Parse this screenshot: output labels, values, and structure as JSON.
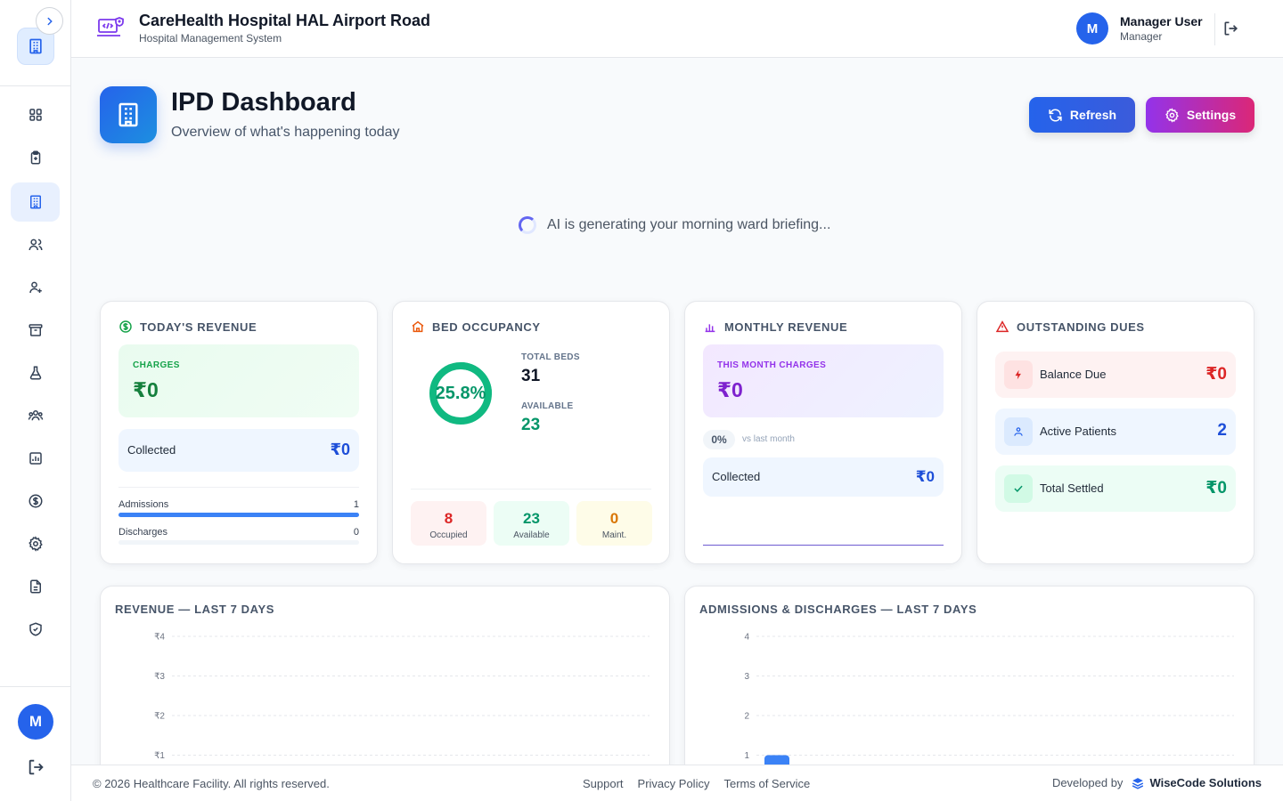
{
  "header": {
    "title": "CareHealth Hospital HAL Airport Road",
    "subtitle": "Hospital Management System",
    "user_initial": "M",
    "user_name": "Manager User",
    "user_role": "Manager"
  },
  "sidebar": {
    "avatar_initial": "M",
    "items": [
      {
        "icon": "grid-icon"
      },
      {
        "icon": "clipboard-icon"
      },
      {
        "icon": "building-icon",
        "active": true
      },
      {
        "icon": "users-icon"
      },
      {
        "icon": "user-plus-icon"
      },
      {
        "icon": "archive-icon"
      },
      {
        "icon": "flask-icon"
      },
      {
        "icon": "group-icon"
      },
      {
        "icon": "bar-chart-icon"
      },
      {
        "icon": "dollar-icon"
      },
      {
        "icon": "gear-icon"
      },
      {
        "icon": "document-icon"
      },
      {
        "icon": "shield-check-icon"
      }
    ]
  },
  "page": {
    "title": "IPD Dashboard",
    "subtitle": "Overview of what's happening today",
    "refresh_label": "Refresh",
    "settings_label": "Settings",
    "briefing": "AI is generating your morning ward briefing..."
  },
  "today_revenue": {
    "title": "TODAY'S REVENUE",
    "charges_label": "CHARGES",
    "charges_value": "₹0",
    "collected_label": "Collected",
    "collected_value": "₹0",
    "admissions_label": "Admissions",
    "admissions_value": "1",
    "admissions_fill": 1.0,
    "discharges_label": "Discharges",
    "discharges_value": "0",
    "discharges_fill": 0
  },
  "bed_occupancy": {
    "title": "BED OCCUPANCY",
    "occupancy_pct": "25.8%",
    "occupancy_fraction": 0.258,
    "total_label": "TOTAL BEDS",
    "total_value": "31",
    "available_label": "AVAILABLE",
    "available_value": "23",
    "occupied_count": "8",
    "occupied_label": "Occupied",
    "available_count": "23",
    "available_small_label": "Available",
    "maint_count": "0",
    "maint_label": "Maint."
  },
  "monthly_revenue": {
    "title": "MONTHLY REVENUE",
    "charges_label": "THIS MONTH CHARGES",
    "charges_value": "₹0",
    "change_pct": "0%",
    "change_note": "vs last month",
    "collected_label": "Collected",
    "collected_value": "₹0"
  },
  "outstanding_dues": {
    "title": "OUTSTANDING DUES",
    "balance_label": "Balance Due",
    "balance_value": "₹0",
    "active_label": "Active Patients",
    "active_value": "2",
    "settled_label": "Total Settled",
    "settled_value": "₹0"
  },
  "charts": {
    "revenue_title": "REVENUE — LAST 7 DAYS",
    "admissions_title": "ADMISSIONS & DISCHARGES — LAST 7 DAYS"
  },
  "chart_data": [
    {
      "type": "line",
      "title": "REVENUE — LAST 7 DAYS",
      "y_tick_labels": [
        "₹4",
        "₹3",
        "₹2",
        "₹1"
      ],
      "ylim": [
        0,
        4
      ],
      "grid": true
    },
    {
      "type": "bar",
      "title": "ADMISSIONS & DISCHARGES — LAST 7 DAYS",
      "y_tick_labels": [
        "4",
        "3",
        "2",
        "1"
      ],
      "ylim": [
        0,
        4
      ],
      "grid": true,
      "first_bar_value": 1
    }
  ],
  "footer": {
    "copyright": "© 2026 Healthcare Facility. All rights reserved.",
    "links": [
      "Support",
      "Privacy Policy",
      "Terms of Service"
    ],
    "developed_by": "Developed by",
    "developer": "WiseCode Solutions"
  },
  "colors": {
    "primary": "#2563eb",
    "success": "#16a34a",
    "purple": "#9333ea",
    "danger": "#dc2626"
  }
}
